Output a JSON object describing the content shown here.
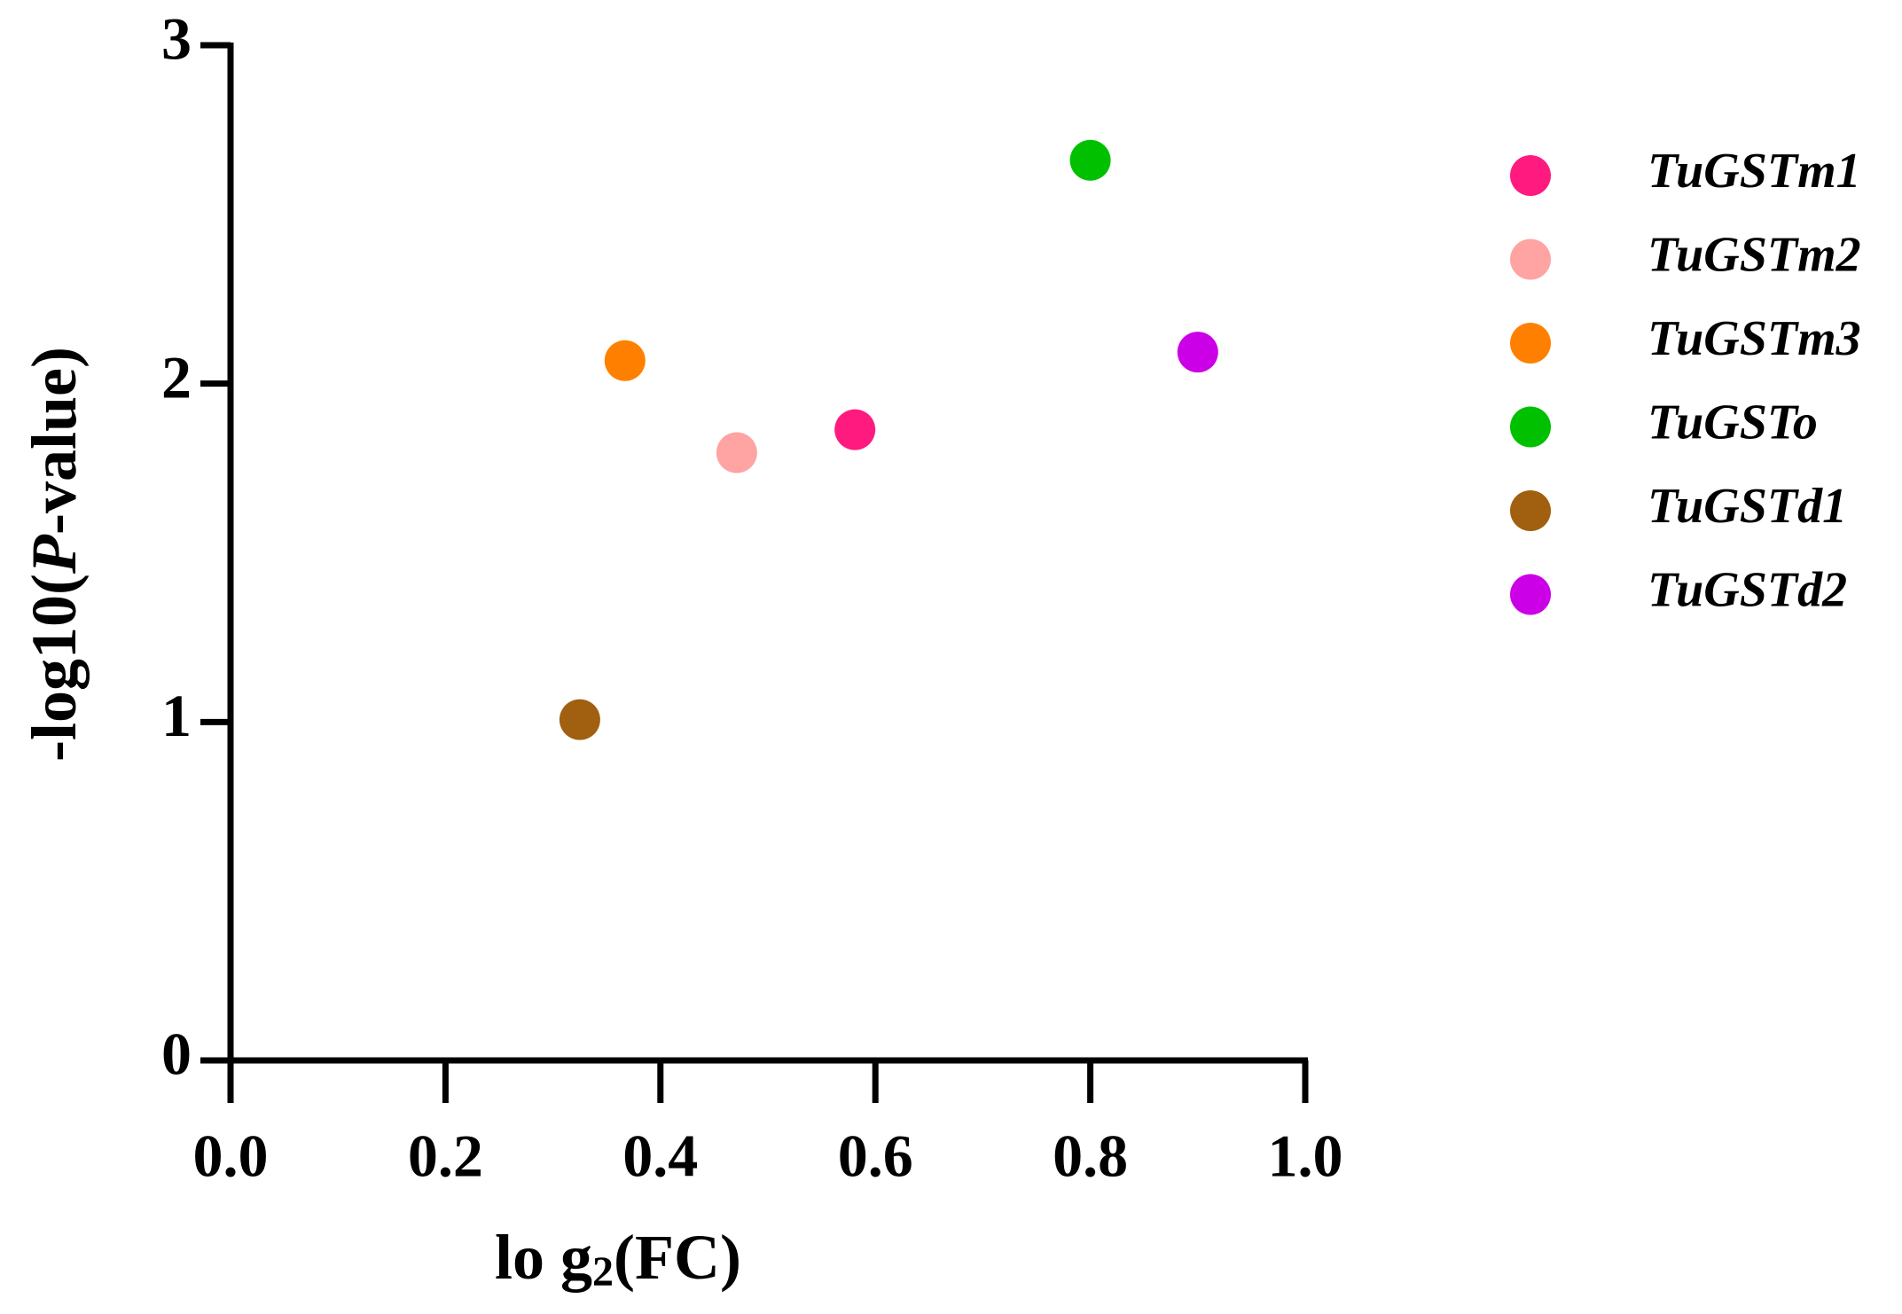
{
  "chart_data": {
    "type": "scatter",
    "x_label": [
      "lo g",
      "2",
      "(FC)"
    ],
    "y_label": [
      "-log10(",
      "P",
      "-value)"
    ],
    "xlim": [
      0,
      1
    ],
    "ylim": [
      0,
      3
    ],
    "xticks": [
      {
        "value": 0,
        "label": "0.0"
      },
      {
        "value": 0.2,
        "label": "0.2"
      },
      {
        "value": 0.4,
        "label": "0.4"
      },
      {
        "value": 0.6,
        "label": "0.6"
      },
      {
        "value": 0.8,
        "label": "0.8"
      },
      {
        "value": 1,
        "label": "1.0"
      }
    ],
    "yticks": [
      0,
      1,
      2,
      3
    ],
    "legend": "right",
    "series": [
      {
        "name": "TuGSTm1",
        "color": "#ff1a80",
        "x": [
          0.581
        ],
        "values": [
          1.864
        ]
      },
      {
        "name": "TuGSTm2",
        "color": "#ffa3a3",
        "x": [
          0.471
        ],
        "values": [
          1.796
        ]
      },
      {
        "name": "TuGSTm3",
        "color": "#ff8000",
        "x": [
          0.367
        ],
        "values": [
          2.068
        ]
      },
      {
        "name": "TuGSTo",
        "color": "#00c000",
        "x": [
          0.8
        ],
        "values": [
          2.66
        ]
      },
      {
        "name": "TuGSTd1",
        "color": "#a0600f",
        "x": [
          0.325
        ],
        "values": [
          1.007
        ]
      },
      {
        "name": "TuGSTd2",
        "color": "#cc00e6",
        "x": [
          0.9
        ],
        "values": [
          2.093
        ]
      }
    ]
  }
}
